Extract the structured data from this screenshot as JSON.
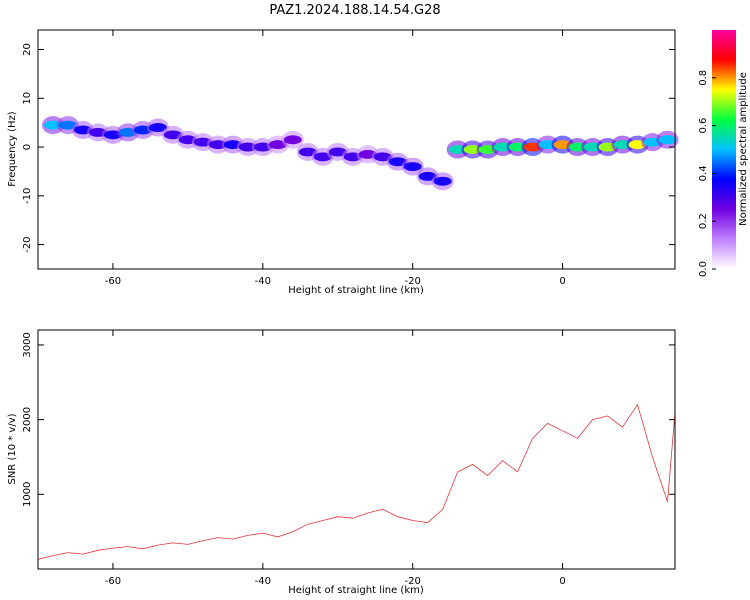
{
  "title": "PAZ1.2024.188.14.54.G28",
  "chart_data": [
    {
      "type": "heatmap",
      "xlabel": "Height of straight line (km)",
      "ylabel": "Frequency (Hz)",
      "xlim": [
        -70,
        15
      ],
      "ylim": [
        -25,
        24
      ],
      "x_ticks": [
        "-60",
        "-40",
        "-20",
        "0"
      ],
      "y_ticks": [
        "20",
        "10",
        "0",
        "-10",
        "-20"
      ],
      "colorbar": {
        "label": "Normalized spectral amplitude",
        "range": [
          0,
          1
        ],
        "ticks": [
          "0.0",
          "0.2",
          "0.4",
          "0.6",
          "0.8"
        ],
        "colormap": [
          "#ffffff",
          "#c080ff",
          "#7000e0",
          "#0000ff",
          "#00c0ff",
          "#00ff40",
          "#ffff00",
          "#ff0000",
          "#ff00a0"
        ]
      },
      "ridge": [
        {
          "x": -68,
          "y": 4.5,
          "z": 0.5
        },
        {
          "x": -66,
          "y": 4.5,
          "z": 0.45
        },
        {
          "x": -64,
          "y": 3.5,
          "z": 0.35
        },
        {
          "x": -62,
          "y": 3,
          "z": 0.3
        },
        {
          "x": -60,
          "y": 2.5,
          "z": 0.35
        },
        {
          "x": -58,
          "y": 3,
          "z": 0.45
        },
        {
          "x": -56,
          "y": 3.5,
          "z": 0.4
        },
        {
          "x": -54,
          "y": 4,
          "z": 0.35
        },
        {
          "x": -52,
          "y": 2.5,
          "z": 0.3
        },
        {
          "x": -50,
          "y": 1.5,
          "z": 0.3
        },
        {
          "x": -48,
          "y": 1,
          "z": 0.3
        },
        {
          "x": -46,
          "y": 0.5,
          "z": 0.3
        },
        {
          "x": -44,
          "y": 0.5,
          "z": 0.35
        },
        {
          "x": -42,
          "y": 0,
          "z": 0.3
        },
        {
          "x": -40,
          "y": 0,
          "z": 0.3
        },
        {
          "x": -38,
          "y": 0.5,
          "z": 0.25
        },
        {
          "x": -36,
          "y": 1.5,
          "z": 0.25
        },
        {
          "x": -34,
          "y": -1,
          "z": 0.3
        },
        {
          "x": -32,
          "y": -2,
          "z": 0.3
        },
        {
          "x": -30,
          "y": -1,
          "z": 0.3
        },
        {
          "x": -28,
          "y": -2,
          "z": 0.3
        },
        {
          "x": -26,
          "y": -1.5,
          "z": 0.25
        },
        {
          "x": -24,
          "y": -2,
          "z": 0.3
        },
        {
          "x": -22,
          "y": -3,
          "z": 0.35
        },
        {
          "x": -20,
          "y": -4,
          "z": 0.35
        },
        {
          "x": -18,
          "y": -6,
          "z": 0.35
        },
        {
          "x": -16,
          "y": -7,
          "z": 0.35
        },
        {
          "x": -14,
          "y": -0.5,
          "z": 0.55
        },
        {
          "x": -12,
          "y": -0.5,
          "z": 0.7
        },
        {
          "x": -10,
          "y": -0.5,
          "z": 0.65
        },
        {
          "x": -8,
          "y": 0,
          "z": 0.55
        },
        {
          "x": -6,
          "y": 0,
          "z": 0.6
        },
        {
          "x": -4,
          "y": 0,
          "z": 0.85
        },
        {
          "x": -2,
          "y": 0.5,
          "z": 0.5
        },
        {
          "x": 0,
          "y": 0.5,
          "z": 0.8
        },
        {
          "x": 2,
          "y": 0,
          "z": 0.6
        },
        {
          "x": 4,
          "y": 0,
          "z": 0.55
        },
        {
          "x": 6,
          "y": 0,
          "z": 0.7
        },
        {
          "x": 8,
          "y": 0.5,
          "z": 0.55
        },
        {
          "x": 10,
          "y": 0.5,
          "z": 0.75
        },
        {
          "x": 12,
          "y": 1,
          "z": 0.5
        },
        {
          "x": 14,
          "y": 1.5,
          "z": 0.5
        }
      ]
    },
    {
      "type": "line",
      "xlabel": "Height of straight line (km)",
      "ylabel": "SNR (10 * v/v)",
      "xlim": [
        -70,
        15
      ],
      "ylim": [
        0,
        3200
      ],
      "x_ticks": [
        "-60",
        "-40",
        "-20",
        "0"
      ],
      "y_ticks": [
        "3000",
        "2000",
        "1000"
      ],
      "series": [
        {
          "color": "#e8353a",
          "x": [
            -70,
            -68,
            -66,
            -64,
            -62,
            -60,
            -58,
            -56,
            -54,
            -52,
            -50,
            -48,
            -46,
            -44,
            -42,
            -40,
            -38,
            -36,
            -34,
            -32,
            -30,
            -28,
            -26,
            -24,
            -22,
            -20,
            -18,
            -16,
            -14,
            -12,
            -10,
            -8,
            -6,
            -4,
            -2,
            0,
            2,
            4,
            6,
            8,
            10,
            12,
            14,
            15
          ],
          "values": [
            130,
            180,
            220,
            200,
            250,
            280,
            300,
            270,
            320,
            350,
            330,
            380,
            420,
            400,
            450,
            480,
            430,
            500,
            600,
            650,
            700,
            680,
            750,
            800,
            700,
            650,
            620,
            800,
            1300,
            1400,
            1250,
            1450,
            1300,
            1750,
            1950,
            1850,
            1750,
            2000,
            2050,
            1900,
            2200,
            1500,
            900,
            2100
          ]
        }
      ]
    }
  ]
}
